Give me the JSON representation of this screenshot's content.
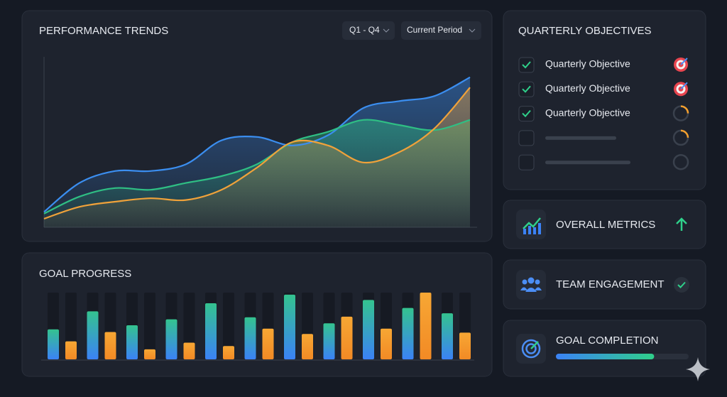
{
  "chart_data": [
    {
      "type": "line",
      "title": "PERFORMANCE TRENDS",
      "filters": [
        "Q1 - Q4",
        "Current Period"
      ],
      "ylim": [
        0,
        100
      ],
      "series": [
        {
          "color": "#3b8ef0",
          "values": [
            9,
            26,
            33,
            33,
            37,
            51,
            53,
            48,
            54,
            70,
            74,
            77,
            88
          ]
        },
        {
          "color": "#2fbf84",
          "values": [
            8,
            18,
            23,
            22,
            26,
            30,
            37,
            50,
            56,
            63,
            60,
            57,
            63
          ]
        },
        {
          "color": "#f0a23a",
          "values": [
            5,
            12,
            15,
            17,
            16,
            22,
            35,
            50,
            48,
            38,
            44,
            58,
            82
          ]
        }
      ]
    },
    {
      "type": "bar",
      "title": "GOAL PROGRESS",
      "ylim": [
        0,
        100
      ],
      "series": [
        {
          "color": "#2fbf84",
          "values": [
            45,
            72,
            51,
            60,
            84,
            63,
            97,
            54,
            89,
            77,
            69
          ]
        },
        {
          "color": "#f5a02e",
          "values": [
            27,
            41,
            15,
            25,
            20,
            46,
            38,
            64,
            46,
            100,
            40
          ]
        }
      ]
    }
  ],
  "objectives": {
    "title": "QUARTERLY OBJECTIVES",
    "items": [
      {
        "label": "Quarterly Objective",
        "checked": true,
        "icon": "target"
      },
      {
        "label": "Quarterly Objective",
        "checked": true,
        "icon": "target"
      },
      {
        "label": "Quarterly Objective",
        "checked": true,
        "icon": "progress"
      },
      {
        "checked": false,
        "icon": "progress"
      },
      {
        "checked": false,
        "icon": "empty"
      }
    ]
  },
  "cards": [
    {
      "title": "OVERALL METRICS"
    },
    {
      "title": "TEAM ENGAGEMENT"
    },
    {
      "title": "GOAL COMPLETION",
      "progress": 74,
      "max": 100
    }
  ]
}
